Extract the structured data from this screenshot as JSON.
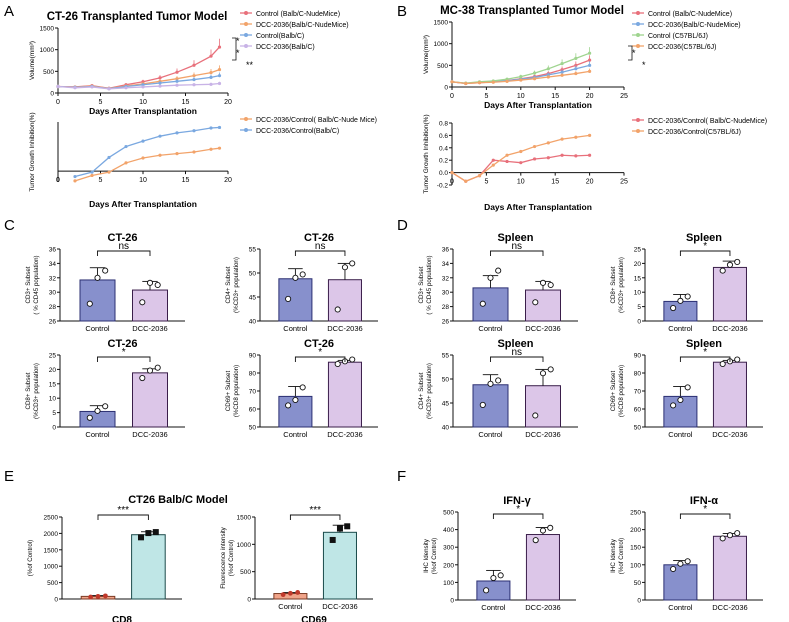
{
  "panels": {
    "A": "A",
    "B": "B",
    "C": "C",
    "D": "D",
    "E": "E",
    "F": "F"
  },
  "colors": {
    "red": "#e8707b",
    "orange": "#f2a36a",
    "blue": "#7aa8e0",
    "purple": "#c8b3e6",
    "ctrl_fill": "#8790cc",
    "ctrl_edge": "#2b2f72",
    "dcc_fill": "#dcc6e8",
    "dcc_edge": "#3a1e4a",
    "e_ctrl": "#f0a48a",
    "e_dcc": "#bfe6e6"
  },
  "chart_data": [
    {
      "id": "A-volume",
      "type": "line",
      "title": "CT-26 Transplanted Tumor Model",
      "xlabel": "Days After Transplantation",
      "ylabel": "Volume(mm³)",
      "xlim": [
        0,
        20
      ],
      "ylim": [
        0,
        1500
      ],
      "xticks": [
        "0",
        "5",
        "10",
        "15",
        "20"
      ],
      "yticks": [
        "0",
        "500",
        "1000",
        "1500"
      ],
      "x": [
        0,
        2,
        4,
        6,
        8,
        10,
        12,
        14,
        16,
        18,
        19
      ],
      "series": [
        {
          "name": "Control  (Balb/C-NudeMice)",
          "color": "#e8707b",
          "values": [
            150,
            140,
            170,
            110,
            190,
            260,
            350,
            480,
            640,
            850,
            1060
          ]
        },
        {
          "name": "DCC-2036(Balb/C-NudeMice)",
          "color": "#f2a36a",
          "values": [
            150,
            135,
            160,
            105,
            160,
            210,
            270,
            330,
            400,
            470,
            540
          ]
        },
        {
          "name": "Control(Balb/C)",
          "color": "#7aa8e0",
          "values": [
            150,
            130,
            150,
            100,
            150,
            190,
            230,
            270,
            310,
            360,
            400
          ]
        },
        {
          "name": "DCC-2036(Balb/C)",
          "color": "#c8b3e6",
          "values": [
            150,
            120,
            140,
            95,
            120,
            140,
            160,
            180,
            190,
            200,
            220
          ]
        }
      ],
      "annotations": [
        "*",
        "*",
        "**"
      ]
    },
    {
      "id": "A-inhibition",
      "type": "line",
      "xlabel": "Days After Transplantation",
      "ylabel": "Tumor Growth Inhibition(%)",
      "xlim": [
        0,
        20
      ],
      "ylim": [
        -0.2,
        0.9
      ],
      "xticks": [
        "0",
        "5",
        "10",
        "15",
        "20"
      ],
      "x": [
        2,
        4,
        6,
        8,
        10,
        12,
        14,
        16,
        18,
        19
      ],
      "series": [
        {
          "name": "DCC-2036/Control( Balb/C-Nude Mice)",
          "color": "#f2a36a",
          "values": [
            -0.18,
            -0.08,
            -0.02,
            0.15,
            0.24,
            0.29,
            0.32,
            0.35,
            0.4,
            0.42
          ]
        },
        {
          "name": "DCC-2036/Control(Balb/C)",
          "color": "#7aa8e0",
          "values": [
            -0.1,
            -0.02,
            0.25,
            0.45,
            0.55,
            0.64,
            0.7,
            0.74,
            0.79,
            0.8
          ]
        }
      ]
    },
    {
      "id": "B-volume",
      "type": "line",
      "title": "MC-38 Transplanted Tumor Model",
      "xlabel": "Days After Transplantation",
      "ylabel": "Volume(mm³)",
      "xlim": [
        0,
        25
      ],
      "ylim": [
        0,
        1500
      ],
      "xticks": [
        "0",
        "5",
        "10",
        "15",
        "20",
        "25"
      ],
      "yticks": [
        "0",
        "500",
        "1000",
        "1500"
      ],
      "x": [
        0,
        2,
        4,
        6,
        8,
        10,
        12,
        14,
        16,
        18,
        20
      ],
      "series": [
        {
          "name": "Control  (Balb/C-NudeMice)",
          "color": "#e8707b",
          "values": [
            120,
            80,
            100,
            120,
            150,
            190,
            240,
            310,
            400,
            500,
            620
          ]
        },
        {
          "name": "DCC-2036(Balb/C-NudeMice)",
          "color": "#7aa8e0",
          "values": [
            120,
            85,
            110,
            125,
            145,
            180,
            220,
            280,
            340,
            420,
            500
          ]
        },
        {
          "name": "Control (C57BL/6J)",
          "color": "#9fd48f",
          "values": [
            120,
            90,
            120,
            140,
            180,
            240,
            320,
            420,
            540,
            660,
            780
          ]
        },
        {
          "name": "DCC-2036(C57BL/6J)",
          "color": "#f2a36a",
          "values": [
            120,
            80,
            100,
            110,
            130,
            160,
            190,
            230,
            270,
            310,
            360
          ]
        }
      ],
      "annotations": [
        "*",
        "*"
      ]
    },
    {
      "id": "B-inhibition",
      "type": "line",
      "xlabel": "Days After Transplantation",
      "ylabel": "Tumor Growth Inhibition(%)",
      "xlim": [
        0,
        25
      ],
      "ylim": [
        -0.2,
        0.8
      ],
      "xticks": [
        "0",
        "5",
        "10",
        "15",
        "20",
        "25"
      ],
      "yticks": [
        "-0.2",
        "0.0",
        "0.2",
        "0.4",
        "0.6",
        "0.8"
      ],
      "x": [
        0,
        2,
        4,
        6,
        8,
        10,
        12,
        14,
        16,
        18,
        20
      ],
      "series": [
        {
          "name": "DCC-2036/Control( Balb/C-NudeMice)",
          "color": "#e8707b",
          "values": [
            0,
            -0.14,
            -0.05,
            0.2,
            0.18,
            0.16,
            0.22,
            0.24,
            0.28,
            0.27,
            0.28
          ]
        },
        {
          "name": "DCC-2036/Control(C57BL/6J)",
          "color": "#f2a36a",
          "values": [
            0,
            -0.14,
            -0.05,
            0.12,
            0.28,
            0.34,
            0.42,
            0.48,
            0.54,
            0.57,
            0.6
          ]
        }
      ]
    },
    {
      "id": "C1",
      "type": "bar",
      "title": "CT-26",
      "categories": [
        "Control",
        "DCC-2036"
      ],
      "values": [
        31.7,
        30.3
      ],
      "errors": [
        1.7,
        1.2
      ],
      "points": [
        [
          28.4,
          32,
          33
        ],
        [
          28.6,
          31.3,
          31
        ]
      ],
      "ylabel": "CD3+ Subset\n( % CD45 population)",
      "ylim": [
        26,
        36
      ],
      "yticks": [
        "26",
        "28",
        "30",
        "32",
        "34",
        "36"
      ],
      "sig": "ns"
    },
    {
      "id": "C2",
      "type": "bar",
      "title": "CT-26",
      "categories": [
        "Control",
        "DCC-2036"
      ],
      "values": [
        48.8,
        48.6
      ],
      "errors": [
        2.1,
        3.4
      ],
      "points": [
        [
          44.6,
          49,
          49.7
        ],
        [
          42.4,
          51.2,
          52
        ]
      ],
      "ylabel": "CD4+ Subset\n(%CD3+ population)",
      "ylim": [
        40,
        55
      ],
      "yticks": [
        "40",
        "45",
        "50",
        "55"
      ],
      "sig": "ns"
    },
    {
      "id": "C3",
      "type": "bar",
      "title": "CT-26",
      "categories": [
        "Control",
        "DCC-2036"
      ],
      "values": [
        5.4,
        18.8
      ],
      "errors": [
        2,
        1.4
      ],
      "points": [
        [
          3.2,
          5.6,
          7.2
        ],
        [
          17,
          19.6,
          20.6
        ]
      ],
      "ylabel": "CD8+ Subset\n(%CD3+ population)",
      "ylim": [
        0,
        25
      ],
      "yticks": [
        "0",
        "5",
        "10",
        "15",
        "20",
        "25"
      ],
      "sig": "*"
    },
    {
      "id": "C4",
      "type": "bar",
      "title": "CT-26",
      "categories": [
        "Control",
        "DCC-2036"
      ],
      "values": [
        67,
        86
      ],
      "errors": [
        5.5,
        1
      ],
      "points": [
        [
          62,
          65,
          72
        ],
        [
          85,
          86.5,
          87.5
        ]
      ],
      "ylabel": "CD69+ Subset\n(%CD8 population)",
      "ylim": [
        50,
        90
      ],
      "yticks": [
        "50",
        "60",
        "70",
        "80",
        "90"
      ],
      "sig": "*"
    },
    {
      "id": "D1",
      "type": "bar",
      "title": "Spleen",
      "categories": [
        "Control",
        "DCC-2036"
      ],
      "values": [
        30.6,
        30.3
      ],
      "errors": [
        1.7,
        1.2
      ],
      "points": [
        [
          28.4,
          32,
          33
        ],
        [
          28.6,
          31.3,
          31
        ]
      ],
      "ylabel": "CD3+ Subset\n( % CD45 population)",
      "ylim": [
        26,
        36
      ],
      "yticks": [
        "26",
        "28",
        "30",
        "32",
        "34",
        "36"
      ],
      "sig": "ns"
    },
    {
      "id": "D2",
      "type": "bar",
      "title": "Spleen",
      "categories": [
        "Control",
        "DCC-2036"
      ],
      "values": [
        6.8,
        18.6
      ],
      "errors": [
        2.4,
        2.2
      ],
      "points": [
        [
          4.5,
          7,
          8.5
        ],
        [
          17.5,
          19.5,
          20.5
        ]
      ],
      "ylabel": "CD8+ Subset\n(%CD3+ population)",
      "ylim": [
        0,
        25
      ],
      "yticks": [
        "0",
        "5",
        "10",
        "15",
        "20",
        "25"
      ],
      "sig": "*"
    },
    {
      "id": "D3",
      "type": "bar",
      "title": "Spleen",
      "categories": [
        "Control",
        "DCC-2036"
      ],
      "values": [
        48.8,
        48.6
      ],
      "errors": [
        2.1,
        3.4
      ],
      "points": [
        [
          44.6,
          49,
          49.7
        ],
        [
          42.4,
          51.2,
          52
        ]
      ],
      "ylabel": "CD4+ Subset\n(%CD3+ population)",
      "ylim": [
        40,
        55
      ],
      "yticks": [
        "40",
        "45",
        "50",
        "55"
      ],
      "sig": "ns"
    },
    {
      "id": "D4",
      "type": "bar",
      "title": "Spleen",
      "categories": [
        "Control",
        "DCC-2036"
      ],
      "values": [
        67,
        86
      ],
      "errors": [
        5.5,
        1
      ],
      "points": [
        [
          62,
          65,
          72
        ],
        [
          85,
          86.5,
          87.5
        ]
      ],
      "ylabel": "CD69+ Subset\n(%CD8 population)",
      "ylim": [
        50,
        90
      ],
      "yticks": [
        "50",
        "60",
        "70",
        "80",
        "90"
      ],
      "sig": "*"
    },
    {
      "id": "E1",
      "type": "bar",
      "categories": [
        "",
        ""
      ],
      "values": [
        80,
        1960
      ],
      "errors": [
        25,
        90
      ],
      "points": [
        [
          60,
          80,
          95
        ],
        [
          1880,
          2010,
          2040
        ]
      ],
      "ylabel": "(%of Control)",
      "xlabel": "CD8",
      "ylim": [
        0,
        2500
      ],
      "yticks": [
        "0",
        "500",
        "1000",
        "1500",
        "2000",
        "2500"
      ],
      "sig": "***"
    },
    {
      "id": "E2",
      "type": "bar",
      "categories": [
        "Control",
        "DCC-2036"
      ],
      "values": [
        100,
        1220
      ],
      "errors": [
        20,
        130
      ],
      "points": [
        [
          80,
          105,
          120
        ],
        [
          1080,
          1290,
          1330
        ]
      ],
      "ylabel": "Fluorescence intensity\n(%of Control)",
      "xlabel": "CD69",
      "ylim": [
        0,
        1500
      ],
      "yticks": [
        "0",
        "500",
        "1000",
        "1500"
      ],
      "sig": "***"
    },
    {
      "id": "F1",
      "type": "bar",
      "title": "IFN-γ",
      "categories": [
        "Control",
        "DCC-2036"
      ],
      "values": [
        108,
        372
      ],
      "errors": [
        60,
        40
      ],
      "points": [
        [
          55,
          125,
          140
        ],
        [
          340,
          395,
          410
        ]
      ],
      "ylabel": "IHC Idensity\n(%of Control)",
      "ylim": [
        0,
        500
      ],
      "yticks": [
        "0",
        "100",
        "200",
        "300",
        "400",
        "500"
      ],
      "sig": "*"
    },
    {
      "id": "F2",
      "type": "bar",
      "title": "IFN-α",
      "categories": [
        "Control",
        "DCC-2036"
      ],
      "values": [
        100,
        181
      ],
      "errors": [
        12,
        8
      ],
      "points": [
        [
          88,
          103,
          110
        ],
        [
          175,
          184,
          190
        ]
      ],
      "ylabel": "IHC Idensity\n(%of Control)",
      "ylim": [
        0,
        250
      ],
      "yticks": [
        "0",
        "50",
        "100",
        "150",
        "200",
        "250"
      ],
      "sig": "*"
    }
  ],
  "e_title": "CT26 Balb/C Model"
}
